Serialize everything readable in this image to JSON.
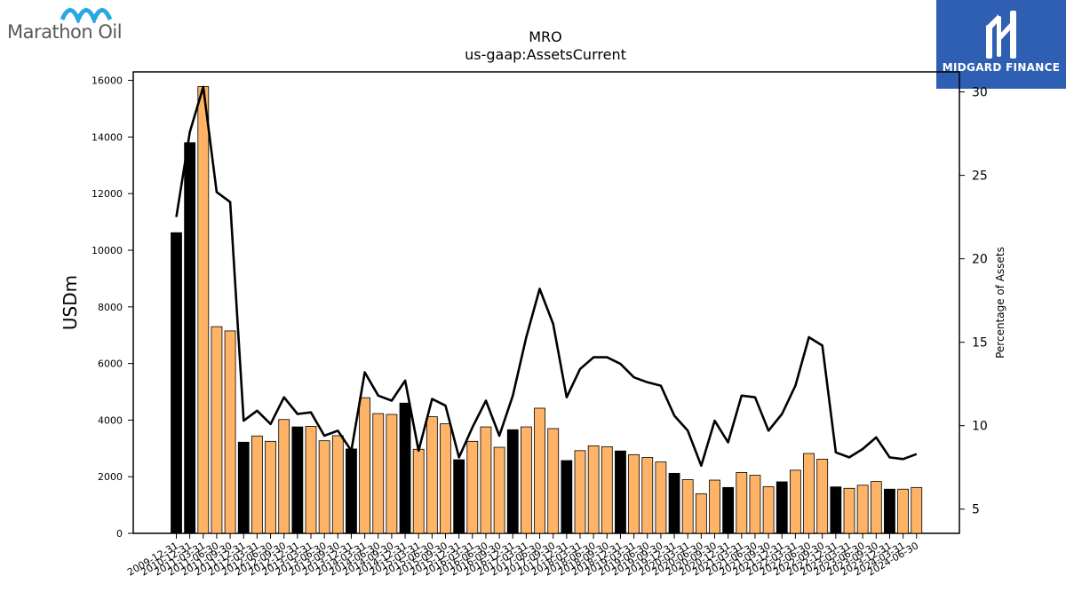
{
  "brand": {
    "left_logo_text": "Marathon Oil",
    "right_logo_text": "MIDGARD FINANCE"
  },
  "colors": {
    "black_bar": "#000000",
    "orange_bar": "#ffb366",
    "line": "#000000",
    "brand_blue": "#2f5fb3",
    "marathon_blue": "#29a8e0"
  },
  "chart_data": {
    "type": "bar",
    "title": "MRO",
    "subtitle": "us-gaap:AssetsCurrent",
    "ylabel": "USDm",
    "y2label": "Percentage of Assets",
    "ylim": [
      0,
      16300
    ],
    "y2lim": [
      3.55,
      31.2
    ],
    "yticks": [
      0,
      2000,
      4000,
      6000,
      8000,
      10000,
      12000,
      14000,
      16000
    ],
    "y2ticks": [
      5,
      10,
      15,
      20,
      25,
      30
    ],
    "categories": [
      "2009-12-31",
      "2010-12-31",
      "2011-03-31",
      "2011-06-30",
      "2011-09-30",
      "2011-12-31",
      "2012-03-31",
      "2012-06-30",
      "2012-09-30",
      "2012-12-31",
      "2013-03-31",
      "2013-06-30",
      "2013-09-30",
      "2013-12-31",
      "2014-03-31",
      "2014-06-30",
      "2014-09-30",
      "2014-12-31",
      "2015-03-31",
      "2015-06-30",
      "2015-09-30",
      "2015-12-31",
      "2016-03-31",
      "2016-06-30",
      "2016-09-30",
      "2016-12-31",
      "2017-03-31",
      "2017-06-30",
      "2017-09-30",
      "2017-12-31",
      "2018-03-31",
      "2018-06-30",
      "2018-09-30",
      "2018-12-31",
      "2019-03-31",
      "2019-06-30",
      "2019-09-30",
      "2019-12-31",
      "2020-03-31",
      "2020-06-30",
      "2020-09-30",
      "2020-12-31",
      "2021-03-31",
      "2021-06-30",
      "2021-09-30",
      "2021-12-31",
      "2022-03-31",
      "2022-06-30",
      "2022-09-30",
      "2022-12-31",
      "2023-03-31",
      "2023-06-30",
      "2023-09-30",
      "2023-12-31",
      "2024-03-31",
      "2024-06-30"
    ],
    "xtick_labels": [
      "2009-12-31",
      "2010-12-31",
      "2011-03-31",
      "2011-06-30",
      "2011-09-30",
      "2011-12-31",
      "2012-03-31",
      "2012-06-30",
      "2012-09-30",
      "2012-12-31",
      "2013-03-31",
      "2013-06-30",
      "2013-09-30",
      "2013-12-31",
      "2014-03-31",
      "2014-06-30",
      "2014-09-30",
      "2014-12-31",
      "2015-03-31",
      "2015-06-30",
      "2015-09-30",
      "2015-12-31",
      "2016-03-31",
      "2016-06-30",
      "2016-09-30",
      "2016-12-31",
      "2017-03-31",
      "2017-06-30",
      "2017-09-30",
      "2017-12-31",
      "2018-03-31",
      "2018-06-30",
      "2018-09-30",
      "2018-12-31",
      "2019-03-31",
      "2019-06-30",
      "2019-09-30",
      "2019-12-31",
      "2020-03-31",
      "2020-06-30",
      "2020-09-30",
      "2020-12-31",
      "2021-03-31",
      "2021-06-30",
      "2021-09-30",
      "2021-12-31",
      "2022-03-31",
      "2022-06-30",
      "2022-09-30",
      "2022-12-31",
      "2023-03-31",
      "2023-06-30",
      "2023-09-30",
      "2023-12-31",
      "2024-03-31",
      "2024-06-30"
    ],
    "series": [
      {
        "type": "bar",
        "values": [
          10620,
          13800,
          15780,
          7300,
          7150,
          3220,
          3440,
          3250,
          4020,
          3760,
          3780,
          3270,
          3450,
          2980,
          4790,
          4230,
          4200,
          4600,
          2970,
          4120,
          3870,
          2600,
          3250,
          3760,
          3040,
          3660,
          3760,
          4420,
          3700,
          2570,
          2920,
          3090,
          3060,
          2910,
          2780,
          2680,
          2520,
          2120,
          1900,
          1400,
          1880,
          1620,
          2150,
          2050,
          1650,
          1820,
          2230,
          2820,
          2620,
          1640,
          1590,
          1700,
          1830,
          1560,
          1560,
          1620
        ],
        "colors": [
          "black",
          "black",
          "orange",
          "orange",
          "orange",
          "black",
          "orange",
          "orange",
          "orange",
          "black",
          "orange",
          "orange",
          "orange",
          "black",
          "orange",
          "orange",
          "orange",
          "black",
          "orange",
          "orange",
          "orange",
          "black",
          "orange",
          "orange",
          "orange",
          "black",
          "orange",
          "orange",
          "orange",
          "black",
          "orange",
          "orange",
          "orange",
          "black",
          "orange",
          "orange",
          "orange",
          "black",
          "orange",
          "orange",
          "orange",
          "black",
          "orange",
          "orange",
          "orange",
          "black",
          "orange",
          "orange",
          "orange",
          "black",
          "orange",
          "orange",
          "orange",
          "black",
          "orange",
          "orange"
        ]
      },
      {
        "type": "line",
        "axis": "right",
        "values": [
          22.5,
          27.6,
          30.3,
          24.0,
          23.4,
          10.3,
          10.9,
          10.1,
          11.7,
          10.7,
          10.8,
          9.4,
          9.7,
          8.5,
          13.2,
          11.8,
          11.5,
          12.7,
          8.5,
          11.6,
          11.2,
          8.1,
          9.9,
          11.5,
          9.4,
          11.8,
          15.3,
          18.2,
          16.1,
          11.7,
          13.4,
          14.1,
          14.1,
          13.7,
          12.9,
          12.6,
          12.4,
          10.6,
          9.7,
          7.6,
          10.3,
          9.0,
          11.8,
          11.7,
          9.7,
          10.7,
          12.4,
          15.3,
          14.8,
          8.4,
          8.1,
          8.6,
          9.3,
          8.1,
          8.0,
          8.3
        ]
      }
    ]
  }
}
